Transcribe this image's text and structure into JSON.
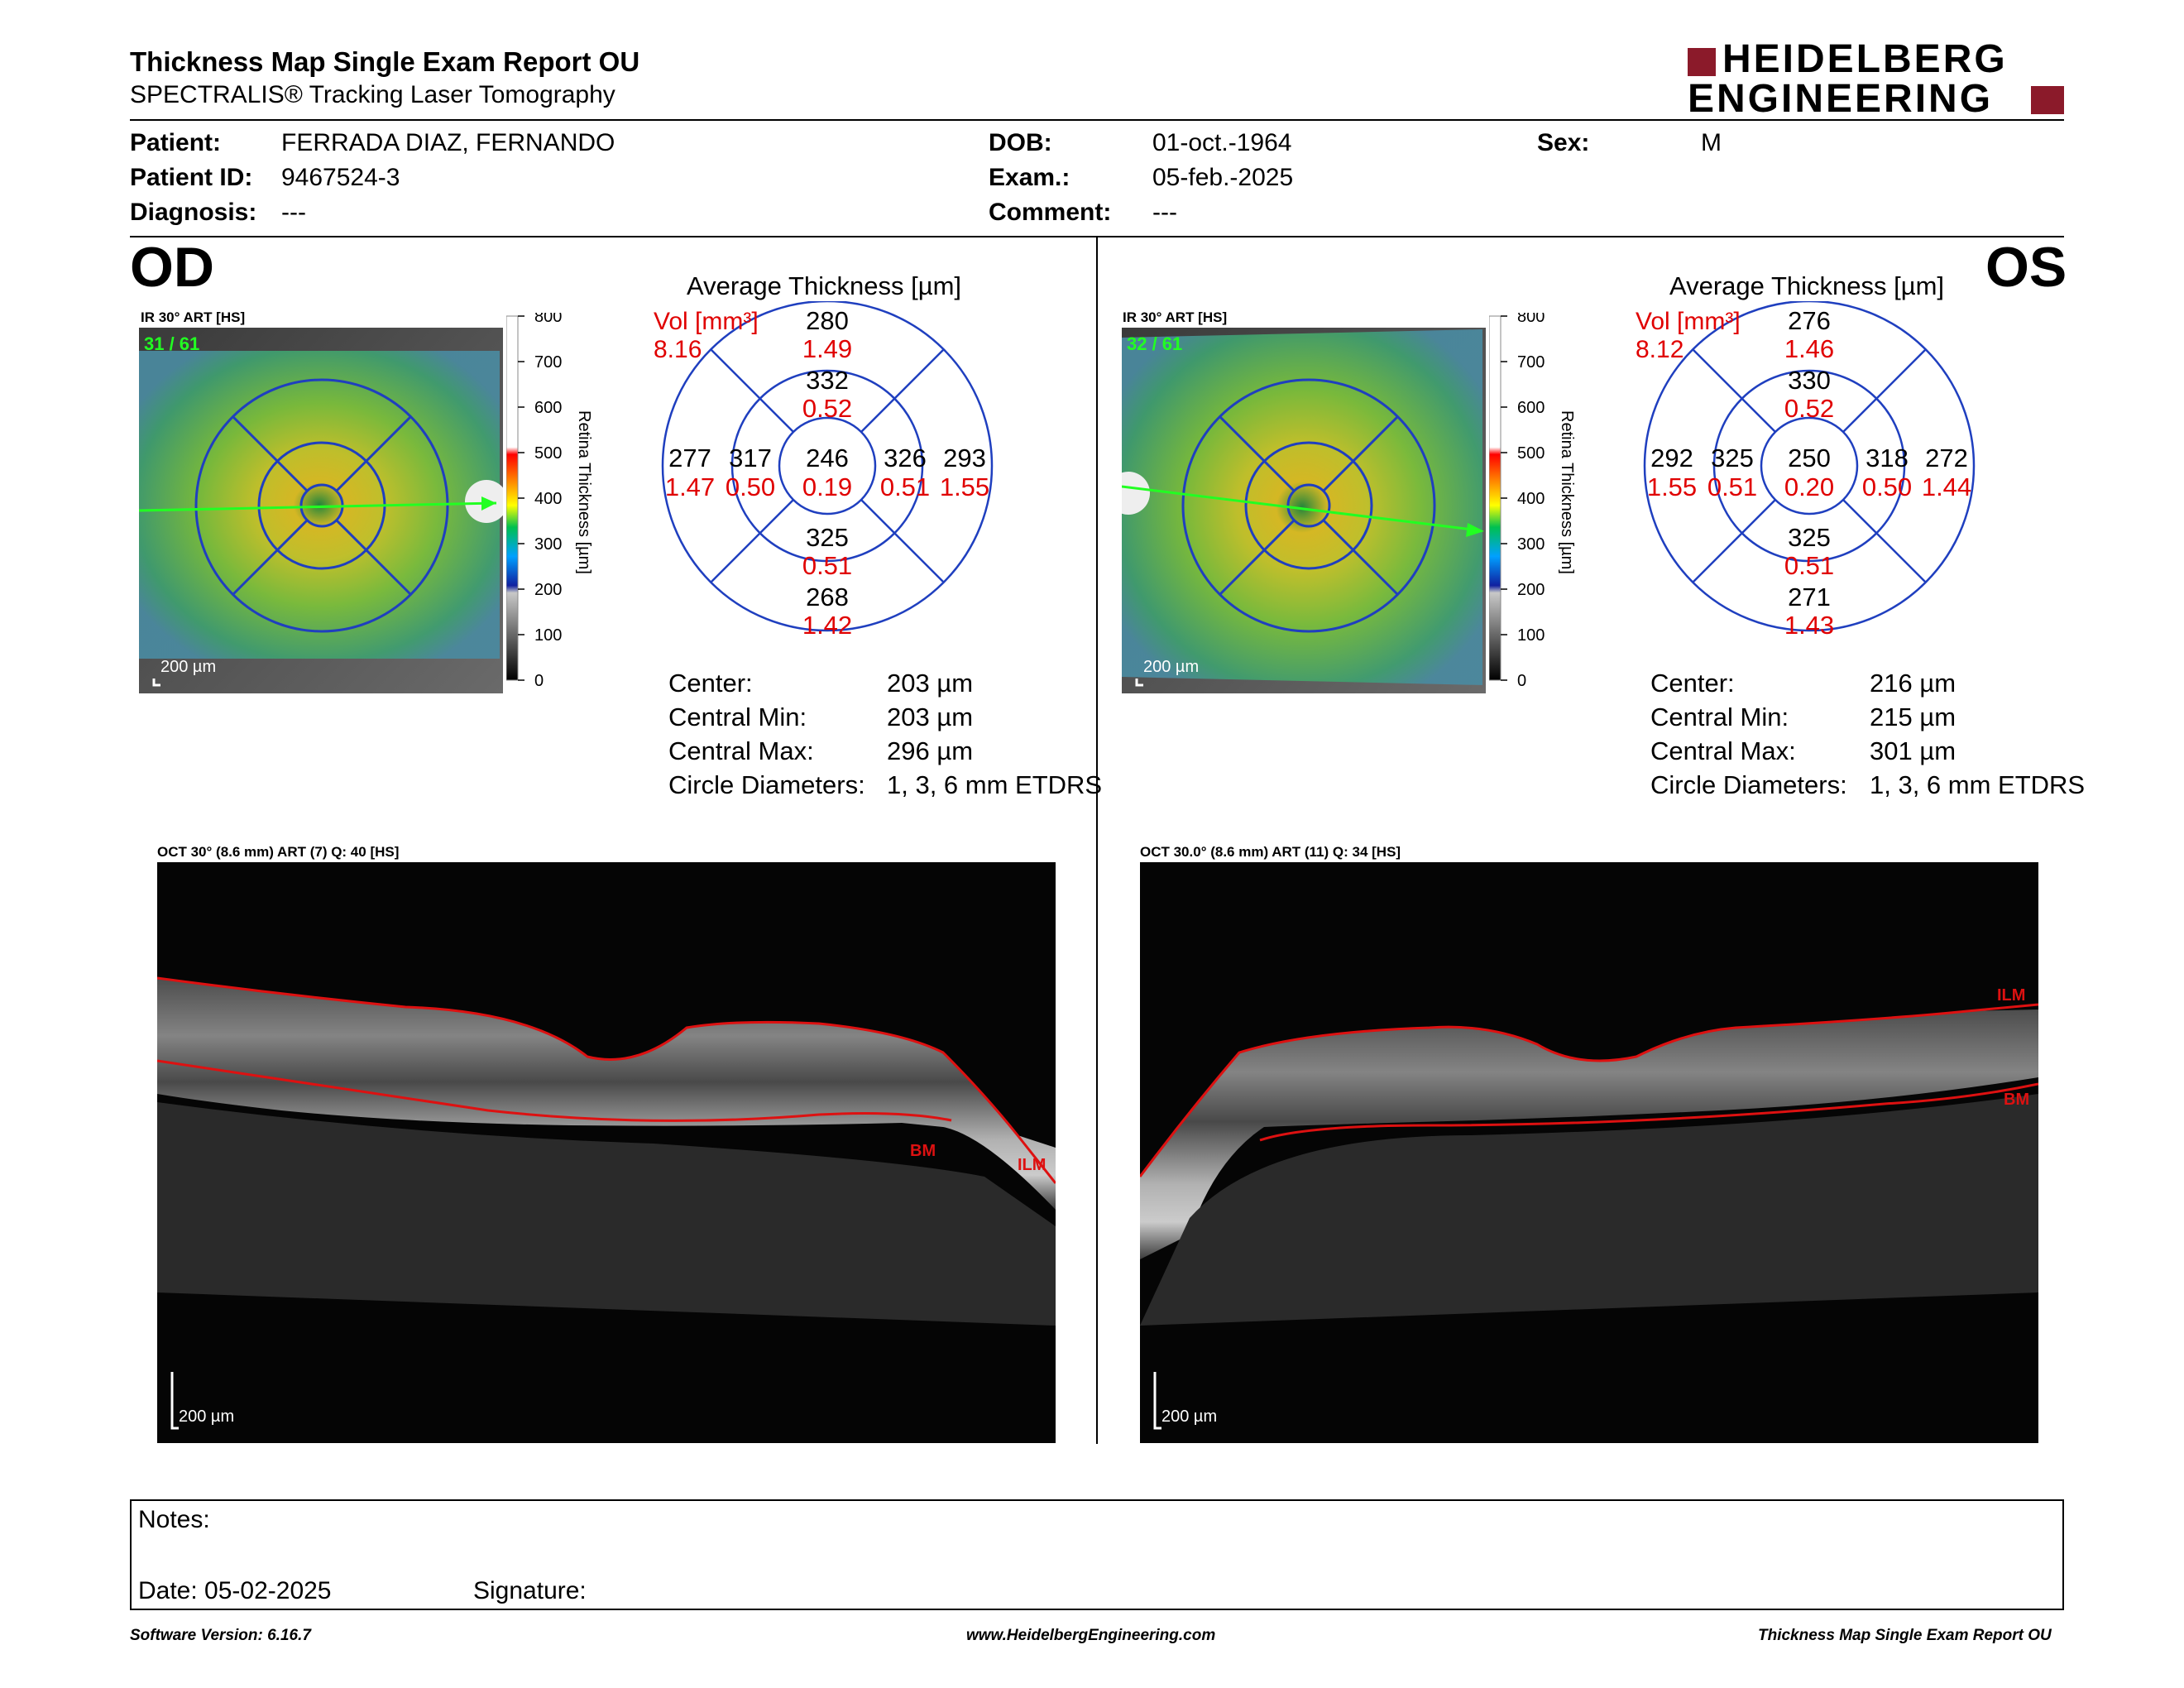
{
  "header": {
    "title": "Thickness Map Single Exam Report OU",
    "subtitle": "SPECTRALIS® Tracking Laser Tomography",
    "logo_line1": "HEIDELBERG",
    "logo_line2": "ENGINEERING"
  },
  "patient": {
    "patient_label": "Patient:",
    "patient_value": "FERRADA DIAZ, FERNANDO",
    "id_label": "Patient ID:",
    "id_value": "9467524-3",
    "diagnosis_label": "Diagnosis:",
    "diagnosis_value": "---",
    "dob_label": "DOB:",
    "dob_value": "01-oct.-1964",
    "exam_label": "Exam.:",
    "exam_value": "05-feb.-2025",
    "comment_label": "Comment:",
    "comment_value": "---",
    "sex_label": "Sex:",
    "sex_value": "M"
  },
  "colors": {
    "etdrs_blue": "#1f3fbf",
    "volume_red": "#e00000",
    "logo_red": "#8b1a2a",
    "green_arrow": "#22ff22",
    "oct_layer": "#dd1111"
  },
  "od": {
    "eye": "OD",
    "ir_label": "IR 30° ART [HS]",
    "frame": "31 / 61",
    "scale": "200 µm",
    "colorbar_ticks": [
      "800",
      "700",
      "600",
      "500",
      "400",
      "300",
      "200",
      "100",
      "0"
    ],
    "colorbar_title": "Retina Thickness [µm]",
    "avg_title": "Average Thickness [µm]",
    "vol_label": "Vol [mm³]",
    "vol_total": "8.16",
    "sectors": {
      "center": {
        "t": "246",
        "v": "0.19"
      },
      "inner_sup": {
        "t": "332",
        "v": "0.52"
      },
      "inner_inf": {
        "t": "325",
        "v": "0.51"
      },
      "inner_left": {
        "t": "317",
        "v": "0.50"
      },
      "inner_right": {
        "t": "326",
        "v": "0.51"
      },
      "outer_sup": {
        "t": "280",
        "v": "1.49"
      },
      "outer_inf": {
        "t": "268",
        "v": "1.42"
      },
      "outer_left": {
        "t": "277",
        "v": "1.47"
      },
      "outer_right": {
        "t": "293",
        "v": "1.55"
      }
    },
    "stats": [
      {
        "label": "Center:",
        "value": "203 µm"
      },
      {
        "label": "Central Min:",
        "value": "203 µm"
      },
      {
        "label": "Central Max:",
        "value": "296 µm"
      },
      {
        "label": "Circle Diameters:",
        "value": "1, 3, 6 mm ETDRS"
      }
    ],
    "oct_label": "OCT 30° (8.6 mm) ART (7) Q: 40 [HS]",
    "oct_scale": "200 µm",
    "oct_tags": [
      "BM",
      "ILM"
    ]
  },
  "os": {
    "eye": "OS",
    "ir_label": "IR 30° ART [HS]",
    "frame": "32 / 61",
    "scale": "200 µm",
    "colorbar_ticks": [
      "800",
      "700",
      "600",
      "500",
      "400",
      "300",
      "200",
      "100",
      "0"
    ],
    "colorbar_title": "Retina Thickness [µm]",
    "avg_title": "Average Thickness [µm]",
    "vol_label": "Vol [mm³]",
    "vol_total": "8.12",
    "sectors": {
      "center": {
        "t": "250",
        "v": "0.20"
      },
      "inner_sup": {
        "t": "330",
        "v": "0.52"
      },
      "inner_inf": {
        "t": "325",
        "v": "0.51"
      },
      "inner_left": {
        "t": "325",
        "v": "0.51"
      },
      "inner_right": {
        "t": "318",
        "v": "0.50"
      },
      "outer_sup": {
        "t": "276",
        "v": "1.46"
      },
      "outer_inf": {
        "t": "271",
        "v": "1.43"
      },
      "outer_left": {
        "t": "292",
        "v": "1.55"
      },
      "outer_right": {
        "t": "272",
        "v": "1.44"
      }
    },
    "stats": [
      {
        "label": "Center:",
        "value": "216 µm"
      },
      {
        "label": "Central Min:",
        "value": "215 µm"
      },
      {
        "label": "Central Max:",
        "value": "301 µm"
      },
      {
        "label": "Circle Diameters:",
        "value": "1, 3, 6 mm ETDRS"
      }
    ],
    "oct_label": "OCT 30.0° (8.6 mm) ART (11) Q: 34 [HS]",
    "oct_scale": "200 µm",
    "oct_tags": [
      "ILM",
      "BM"
    ]
  },
  "notes": {
    "notes_label": "Notes:",
    "date_label": "Date: 05-02-2025",
    "signature_label": "Signature:"
  },
  "footer": {
    "version": "Software Version: 6.16.7",
    "website": "www.HeidelbergEngineering.com",
    "report": "Thickness Map Single Exam Report OU"
  }
}
